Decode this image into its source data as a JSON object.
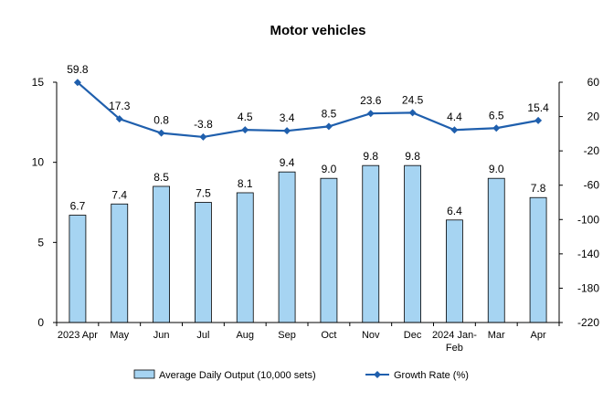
{
  "chart_data": {
    "type": "bar+line",
    "title": "Motor vehicles",
    "categories": [
      [
        "2023 Apr"
      ],
      [
        "May"
      ],
      [
        "Jun"
      ],
      [
        "Jul"
      ],
      [
        "Aug"
      ],
      [
        "Sep"
      ],
      [
        "Oct"
      ],
      [
        "Nov"
      ],
      [
        "Dec"
      ],
      [
        "2024 Jan-",
        "Feb"
      ],
      [
        "Mar"
      ],
      [
        "Apr"
      ]
    ],
    "series": [
      {
        "name": "Average Daily Output (10,000 sets)",
        "type": "bar",
        "axis": "left",
        "values": [
          6.7,
          7.4,
          8.5,
          7.5,
          8.1,
          9.4,
          9.0,
          9.8,
          9.8,
          6.4,
          9.0,
          7.8
        ],
        "labels": [
          "6.7",
          "7.4",
          "8.5",
          "7.5",
          "8.1",
          "9.4",
          "9.0",
          "9.8",
          "9.8",
          "6.4",
          "9.0",
          "7.8"
        ]
      },
      {
        "name": "Growth Rate (%)",
        "type": "line",
        "axis": "right",
        "values": [
          59.8,
          17.3,
          0.8,
          -3.8,
          4.5,
          3.4,
          8.5,
          23.6,
          24.5,
          4.4,
          6.5,
          15.4
        ],
        "labels": [
          "59.8",
          "17.3",
          "0.8",
          "-3.8",
          "4.5",
          "3.4",
          "8.5",
          "23.6",
          "24.5",
          "4.4",
          "6.5",
          "15.4"
        ]
      }
    ],
    "y_left": {
      "min": 0,
      "max": 15,
      "ticks": [
        0,
        5,
        10,
        15
      ],
      "tick_labels": [
        "0",
        "5",
        "10",
        "15"
      ]
    },
    "y_right": {
      "min": -220,
      "max": 60,
      "ticks": [
        -220,
        -180,
        -140,
        -100,
        -60,
        -20,
        20,
        60
      ],
      "tick_labels": [
        "-220",
        "-180",
        "-140",
        "-100",
        "-60",
        "-20",
        "20",
        "60"
      ]
    },
    "legend_position": "bottom",
    "colors": {
      "bar_fill": "#a6d4f2",
      "bar_stroke": "#000000",
      "line": "#1f5fad"
    }
  }
}
